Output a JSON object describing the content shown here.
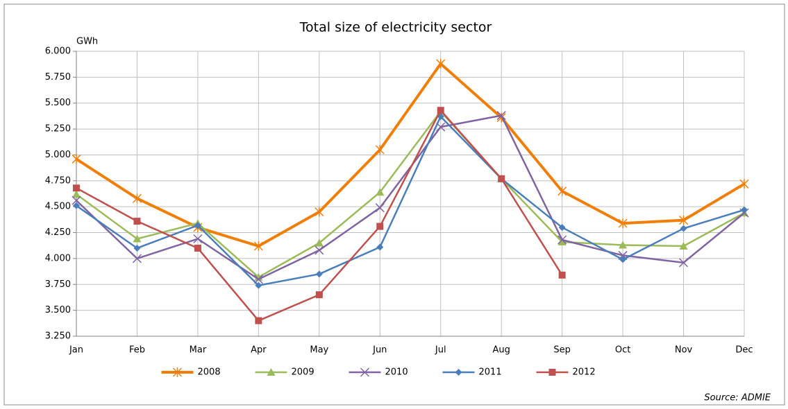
{
  "chart_data": {
    "type": "line",
    "title": "Total size of electricity sector",
    "y_label": "GWh",
    "source": "Source: ADMIE",
    "categories": [
      "Jan",
      "Feb",
      "Mar",
      "Apr",
      "May",
      "Jun",
      "Jul",
      "Aug",
      "Sep",
      "Oct",
      "Nov",
      "Dec"
    ],
    "series": [
      {
        "name": "2008",
        "color": "#f07f09",
        "marker": "star",
        "values": [
          4960,
          4580,
          4300,
          4120,
          4450,
          5050,
          5880,
          5360,
          4650,
          4340,
          4370,
          4720
        ]
      },
      {
        "name": "2009",
        "color": "#9bbb59",
        "marker": "triangle",
        "values": [
          4620,
          4190,
          4340,
          3820,
          4150,
          4640,
          5420,
          4770,
          4160,
          4130,
          4120,
          4440
        ]
      },
      {
        "name": "2010",
        "color": "#8064a2",
        "marker": "x",
        "values": [
          4560,
          4000,
          4190,
          3800,
          4080,
          4490,
          5270,
          5380,
          4180,
          4030,
          3960,
          4440
        ]
      },
      {
        "name": "2011",
        "color": "#4a7ebb",
        "marker": "diamond",
        "values": [
          4510,
          4100,
          4320,
          3740,
          3850,
          4110,
          5370,
          4770,
          4300,
          3990,
          4290,
          4470
        ]
      },
      {
        "name": "2012",
        "color": "#c0504d",
        "marker": "square",
        "values": [
          4680,
          4360,
          4100,
          3400,
          3650,
          4310,
          5430,
          4770,
          3840,
          null,
          null,
          null
        ]
      }
    ],
    "ylim": [
      3250,
      6000
    ],
    "yticks": [
      {
        "value": 3250,
        "label": "3.250"
      },
      {
        "value": 3500,
        "label": "3.500"
      },
      {
        "value": 3750,
        "label": "3.750"
      },
      {
        "value": 4000,
        "label": "4.000"
      },
      {
        "value": 4250,
        "label": "4.250"
      },
      {
        "value": 4500,
        "label": "4.500"
      },
      {
        "value": 4750,
        "label": "4.750"
      },
      {
        "value": 5000,
        "label": "5.000"
      },
      {
        "value": 5250,
        "label": "5.250"
      },
      {
        "value": 5500,
        "label": "5.500"
      },
      {
        "value": 5750,
        "label": "5.750"
      },
      {
        "value": 6000,
        "label": "6.000"
      }
    ],
    "grid": true,
    "legend": "bottom"
  }
}
